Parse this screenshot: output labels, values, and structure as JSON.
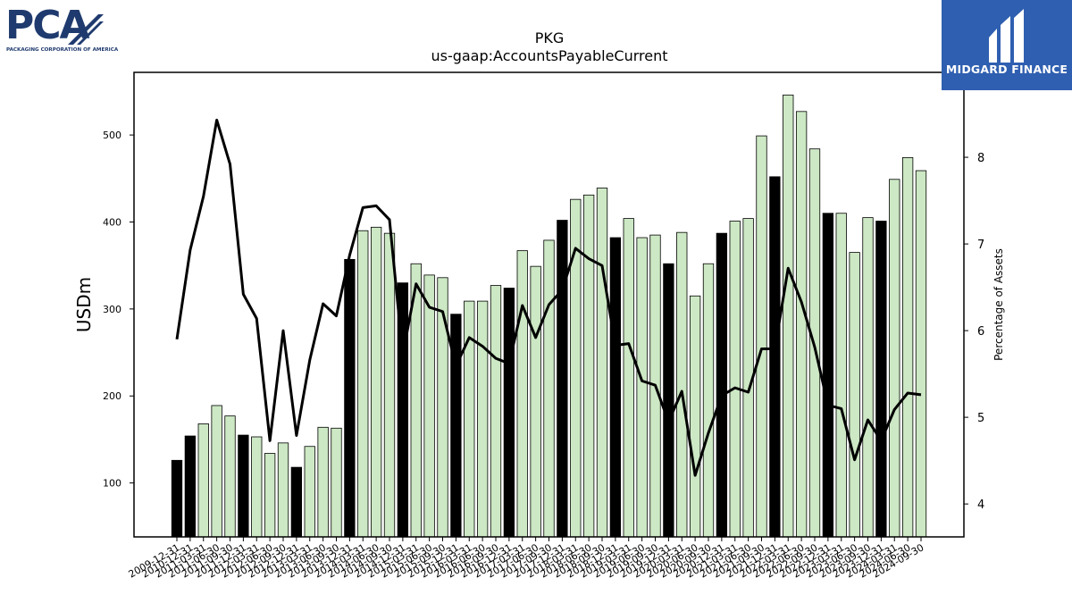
{
  "logos": {
    "left_letters": "PCA",
    "left_subtitle": "PACKAGING CORPORATION OF AMERICA",
    "right_text": "MIDGARD FINANCE"
  },
  "colors": {
    "bar_dark": "#000000",
    "bar_light": "#cce8c4",
    "line": "#000000",
    "brand_blue": "#2f5fb0",
    "pca_navy": "#1f3a6e"
  },
  "chart_data": {
    "type": "bar",
    "title": "PKG",
    "subtitle": "us-gaap:AccountsPayableCurrent",
    "ylabel": "USDm",
    "y2label": "Percentage of Assets",
    "ylim": [
      38,
      572
    ],
    "y2lim": [
      3.62,
      8.98
    ],
    "yticks": [
      100,
      200,
      300,
      400,
      500
    ],
    "y2ticks": [
      4,
      5,
      6,
      7,
      8
    ],
    "grid": false,
    "categories": [
      "2009-12-31",
      "2010-12-31",
      "2011-03-31",
      "2011-06-30",
      "2011-09-30",
      "2011-12-31",
      "2012-03-31",
      "2012-06-30",
      "2012-09-30",
      "2012-12-31",
      "2013-03-31",
      "2013-06-30",
      "2013-09-30",
      "2013-12-31",
      "2014-03-31",
      "2014-06-30",
      "2014-09-30",
      "2014-12-31",
      "2015-03-31",
      "2015-06-30",
      "2015-09-30",
      "2015-12-31",
      "2016-03-31",
      "2016-06-30",
      "2016-09-30",
      "2016-12-31",
      "2017-03-31",
      "2017-06-30",
      "2017-09-30",
      "2017-12-31",
      "2018-03-31",
      "2018-06-30",
      "2018-09-30",
      "2018-12-31",
      "2019-03-31",
      "2019-06-30",
      "2019-09-30",
      "2019-12-31",
      "2020-03-31",
      "2020-06-30",
      "2020-09-30",
      "2020-12-31",
      "2021-03-31",
      "2021-06-30",
      "2021-09-30",
      "2021-12-31",
      "2022-03-31",
      "2022-06-30",
      "2022-09-30",
      "2022-12-31",
      "2023-03-31",
      "2023-06-30",
      "2023-09-30",
      "2023-12-31",
      "2024-03-31",
      "2024-06-30",
      "2024-09-30"
    ],
    "series": [
      {
        "kind": "bar",
        "values": [
          126,
          154,
          168,
          189,
          177,
          155,
          153,
          134,
          146,
          118,
          142,
          164,
          163,
          357,
          390,
          394,
          387,
          330,
          352,
          339,
          336,
          294,
          309,
          309,
          327,
          324,
          367,
          349,
          379,
          402,
          426,
          431,
          439,
          382,
          404,
          382,
          385,
          352,
          388,
          315,
          352,
          387,
          401,
          404,
          499,
          452,
          546,
          527,
          484,
          410,
          410,
          365,
          405,
          401,
          449,
          474,
          459
        ],
        "dark": [
          1,
          1,
          0,
          0,
          0,
          1,
          0,
          0,
          0,
          1,
          0,
          0,
          0,
          1,
          0,
          0,
          0,
          1,
          0,
          0,
          0,
          1,
          0,
          0,
          0,
          1,
          0,
          0,
          0,
          1,
          0,
          0,
          0,
          1,
          0,
          0,
          0,
          1,
          0,
          0,
          0,
          1,
          0,
          0,
          0,
          1,
          0,
          0,
          0,
          1,
          0,
          0,
          0,
          1,
          0,
          0,
          0
        ]
      },
      {
        "kind": "line",
        "axis": "right",
        "values": [
          5.9,
          6.93,
          7.55,
          8.43,
          7.92,
          6.42,
          6.14,
          4.73,
          6.0,
          4.79,
          5.66,
          6.31,
          6.17,
          6.87,
          7.42,
          7.44,
          7.28,
          5.72,
          6.54,
          6.27,
          6.22,
          5.59,
          5.92,
          5.82,
          5.68,
          5.62,
          6.29,
          5.92,
          6.3,
          6.47,
          6.95,
          6.83,
          6.75,
          5.83,
          5.85,
          5.42,
          5.37,
          4.95,
          5.3,
          4.33,
          4.82,
          5.25,
          5.34,
          5.29,
          5.79,
          5.79,
          6.72,
          6.33,
          5.81,
          5.14,
          5.1,
          4.51,
          4.97,
          4.73,
          5.09,
          5.28,
          5.26
        ]
      }
    ]
  }
}
